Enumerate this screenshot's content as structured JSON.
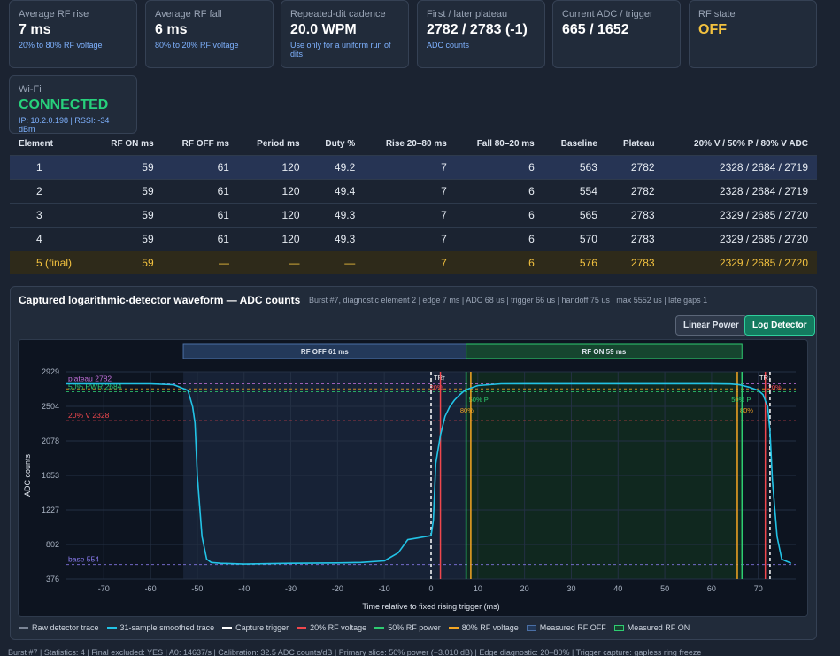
{
  "cards": [
    {
      "label": "Average RF rise",
      "value": "7 ms",
      "sub": "20% to 80% RF voltage"
    },
    {
      "label": "Average RF fall",
      "value": "6 ms",
      "sub": "80% to 20% RF voltage"
    },
    {
      "label": "Repeated-dit cadence",
      "value": "20.0 WPM",
      "sub": "Use only for a uniform run of dits"
    },
    {
      "label": "First / later plateau",
      "value": "2782 / 2783 (-1)",
      "sub": "ADC counts"
    },
    {
      "label": "Current ADC / trigger",
      "value": "665 / 1652",
      "sub": ""
    },
    {
      "label": "RF state",
      "value": "OFF",
      "sub": ""
    },
    {
      "label": "Wi-Fi",
      "value": "CONNECTED",
      "sub": "IP: 10.2.0.198 | RSSI: -34 dBm"
    }
  ],
  "colors": {
    "rf_off": "#f3c23f",
    "connected": "#27d17c"
  },
  "table": {
    "headers": [
      "Element",
      "RF ON ms",
      "RF OFF ms",
      "Period ms",
      "Duty %",
      "Rise 20–80 ms",
      "Fall 80–20 ms",
      "Baseline",
      "Plateau",
      "20% V / 50% P / 80% V ADC"
    ],
    "rows": [
      [
        "1",
        "59",
        "61",
        "120",
        "49.2",
        "7",
        "6",
        "563",
        "2782",
        "2328 / 2684 / 2719"
      ],
      [
        "2",
        "59",
        "61",
        "120",
        "49.4",
        "7",
        "6",
        "554",
        "2782",
        "2328 / 2684 / 2719"
      ],
      [
        "3",
        "59",
        "61",
        "120",
        "49.3",
        "7",
        "6",
        "565",
        "2783",
        "2329 / 2685 / 2720"
      ],
      [
        "4",
        "59",
        "61",
        "120",
        "49.3",
        "7",
        "6",
        "570",
        "2783",
        "2329 / 2685 / 2720"
      ],
      [
        "5 (final)",
        "59",
        "—",
        "—",
        "—",
        "7",
        "6",
        "576",
        "2783",
        "2329 / 2685 / 2720"
      ]
    ]
  },
  "panel": {
    "title": "Captured logarithmic-detector waveform — ADC counts",
    "meta": "Burst #7, diagnostic element 2 | edge 7 ms | ADC 68 us | trigger 66 us | handoff 75 us | max 5552 us | late gaps 1",
    "buttons": {
      "linear": "Linear Power",
      "log": "Log Detector"
    }
  },
  "chart_data": {
    "type": "line",
    "xlabel": "Time relative to fixed rising trigger (ms)",
    "ylabel": "ADC counts",
    "xlim": [
      -78,
      78
    ],
    "ylim": [
      376,
      2929
    ],
    "xticks": [
      -70,
      -60,
      -50,
      -40,
      -30,
      -20,
      -10,
      0,
      10,
      20,
      30,
      40,
      50,
      60,
      70
    ],
    "yticks": [
      376,
      802,
      1227,
      1653,
      2078,
      2504,
      2929
    ],
    "segments": {
      "rf_off": "RF OFF 61 ms",
      "rf_on": "RF ON 59 ms"
    },
    "ref_lines": {
      "plateau": "plateau 2782",
      "p50": "50% PWR 2684",
      "v20": "20% V 2328",
      "base": "base 554"
    },
    "values": {
      "plateau": 2782,
      "p80": 2719,
      "p50": 2684,
      "v20": 2328,
      "base": 554
    },
    "markers": {
      "trigger": "TR↑",
      "trigger_fall": "TR↓",
      "v20": "20%",
      "p50": "50% P",
      "v80": "80%"
    },
    "edges": {
      "trigger_rise": 0,
      "v20_rise": 2,
      "p50_rise": 7.5,
      "v80_rise": 8.5,
      "v80_fall": 65.5,
      "p50_fall": 66.5,
      "v20_fall": 71.5,
      "trigger_fall": 72.5
    },
    "series": [
      {
        "name": "Raw detector trace",
        "x": [
          -78,
          -60,
          -55,
          -52,
          -51,
          -50.5,
          -50,
          -49,
          -48,
          -47,
          -45,
          -40,
          -30,
          -20,
          -15,
          -10,
          -7,
          -5,
          -3,
          -1,
          0,
          0.5,
          1,
          2,
          3,
          4,
          5,
          6,
          7,
          8,
          10,
          15,
          20,
          30,
          40,
          50,
          60,
          64,
          66,
          68,
          70,
          71,
          72,
          72.5,
          73,
          74,
          75,
          77
        ],
        "y": [
          2782,
          2782,
          2770,
          2700,
          2500,
          2300,
          1650,
          900,
          620,
          580,
          570,
          560,
          570,
          575,
          580,
          600,
          700,
          860,
          880,
          900,
          910,
          1100,
          1800,
          2150,
          2380,
          2500,
          2580,
          2640,
          2690,
          2720,
          2760,
          2782,
          2783,
          2783,
          2783,
          2783,
          2783,
          2780,
          2770,
          2740,
          2700,
          2650,
          2500,
          2200,
          1600,
          900,
          620,
          570
        ]
      },
      {
        "name": "31-sample smoothed trace",
        "x": [
          -78,
          -60,
          -55,
          -52,
          -51,
          -50.5,
          -50,
          -49,
          -48,
          -47,
          -45,
          -40,
          -30,
          -20,
          -15,
          -10,
          -7,
          -5,
          -3,
          -1,
          0,
          0.5,
          1,
          2,
          3,
          4,
          5,
          6,
          7,
          8,
          10,
          15,
          20,
          30,
          40,
          50,
          60,
          64,
          66,
          68,
          70,
          71,
          72,
          72.5,
          73,
          74,
          75,
          77
        ],
        "y": [
          2782,
          2782,
          2770,
          2700,
          2500,
          2300,
          1650,
          900,
          620,
          580,
          570,
          560,
          570,
          575,
          580,
          600,
          700,
          860,
          880,
          900,
          910,
          1100,
          1800,
          2150,
          2380,
          2500,
          2580,
          2640,
          2690,
          2720,
          2760,
          2782,
          2783,
          2783,
          2783,
          2783,
          2783,
          2780,
          2770,
          2740,
          2700,
          2650,
          2500,
          2200,
          1600,
          900,
          620,
          570
        ]
      }
    ],
    "legend": [
      "Raw detector trace",
      "31-sample smoothed trace",
      "Capture trigger",
      "20% RF voltage",
      "50% RF power",
      "80% RF voltage",
      "Measured RF OFF",
      "Measured RF ON"
    ],
    "grid": true
  },
  "footer": "Burst #7 | Statistics: 4 | Final excluded: YES | A0: 14637/s | Calibration: 32.5 ADC counts/dB | Primary slice: 50% power (−3.010 dB) | Edge diagnostic: 20–80% | Trigger capture: gapless ring freeze"
}
